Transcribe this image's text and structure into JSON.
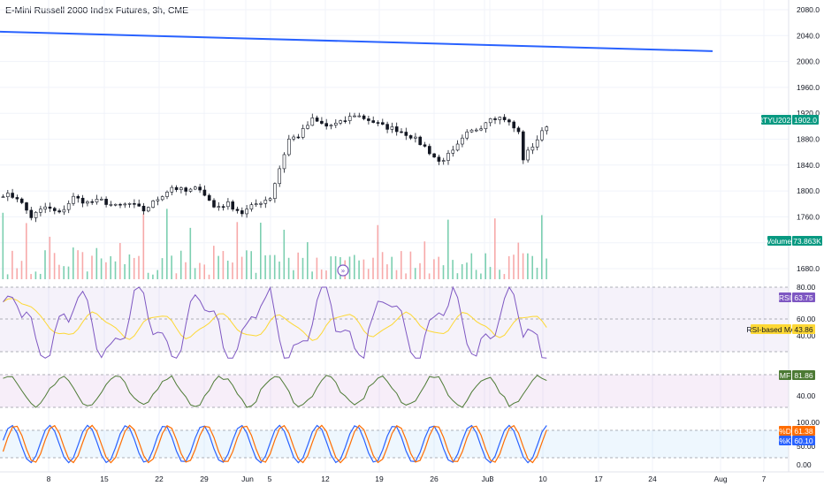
{
  "header": {
    "title": "E-Mini Russell 2000 Index Futures, 3h, CME"
  },
  "chart_data": {
    "type": "candlestick",
    "symbol": "RTYU2023",
    "last_price": "1902.0",
    "price_axis": {
      "ticks": [
        1680,
        1720,
        1760,
        1800,
        1840,
        1880,
        1920,
        1960,
        2000,
        2040,
        2080
      ],
      "range": [
        1650,
        2095
      ]
    },
    "time_axis": {
      "labels": [
        "8",
        "15",
        "22",
        "29",
        "Jun",
        "5",
        "12",
        "19",
        "26",
        "Jul",
        "3",
        "10",
        "17",
        "24",
        "Aug",
        "7"
      ]
    },
    "trendline": {
      "from": [
        "start",
        2046
      ],
      "to": [
        "Jul 24",
        2016
      ]
    },
    "close_series_anchors": [
      [
        0,
        1795
      ],
      [
        3,
        1790
      ],
      [
        6,
        1760
      ],
      [
        9,
        1775
      ],
      [
        12,
        1765
      ],
      [
        15,
        1790
      ],
      [
        18,
        1782
      ],
      [
        21,
        1785
      ],
      [
        24,
        1776
      ],
      [
        27,
        1780
      ],
      [
        30,
        1770
      ],
      [
        33,
        1788
      ],
      [
        36,
        1806
      ],
      [
        39,
        1799
      ],
      [
        42,
        1805
      ],
      [
        45,
        1775
      ],
      [
        48,
        1780
      ],
      [
        51,
        1766
      ],
      [
        54,
        1780
      ],
      [
        57,
        1790
      ],
      [
        59,
        1835
      ],
      [
        61,
        1880
      ],
      [
        63,
        1885
      ],
      [
        66,
        1910
      ],
      [
        69,
        1900
      ],
      [
        72,
        1905
      ],
      [
        75,
        1918
      ],
      [
        78,
        1910
      ],
      [
        81,
        1900
      ],
      [
        84,
        1895
      ],
      [
        87,
        1885
      ],
      [
        90,
        1868
      ],
      [
        93,
        1845
      ],
      [
        96,
        1860
      ],
      [
        99,
        1888
      ],
      [
        102,
        1900
      ],
      [
        104,
        1915
      ],
      [
        107,
        1912
      ],
      [
        110,
        1890
      ],
      [
        111,
        1850
      ],
      [
        113,
        1870
      ],
      [
        115,
        1890
      ],
      [
        116,
        1902
      ]
    ],
    "volume": {
      "label": "Volume",
      "last": "73.863K"
    },
    "rsi": {
      "label": "RSI",
      "value": "63.75",
      "ma_label": "RSI-based MA",
      "ma_value": "43.86",
      "scale_labels": [
        "80.00",
        "60.00",
        "40.00"
      ]
    },
    "mfi": {
      "label": "MF",
      "value": "81.86",
      "scale_labels": [
        "80.00",
        "40.00"
      ]
    },
    "stoch": {
      "k_label": "%K",
      "k_value": "60.10",
      "d_label": "%D",
      "d_value": "61.38",
      "scale_labels": [
        "100.00",
        "50.00",
        "0.00"
      ]
    },
    "colors": {
      "up": "#089981",
      "down": "#f23645",
      "trend": "#2962ff",
      "rsi": "#7e57c2",
      "rsi_ma": "#fdd835",
      "mfi": "#4c7a34",
      "stoch_k": "#2962ff",
      "stoch_d": "#ff6d00"
    }
  }
}
